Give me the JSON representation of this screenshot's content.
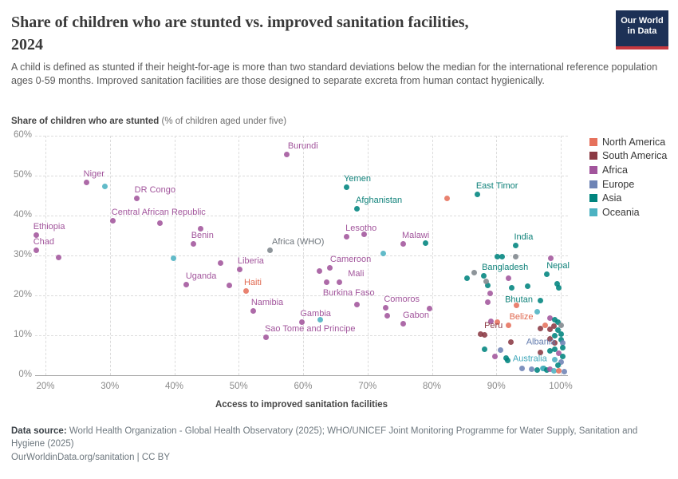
{
  "header": {
    "title_line1": "Share of children who are stunted vs. improved sanitation facilities,",
    "title_line2": "2024",
    "subtitle": "A child is defined as stunted if their height-for-age is more than two standard deviations below the median for the international reference population ages 0-59 months. Improved sanitation facilities are those designed to separate excreta from human contact hygienically.",
    "logo_line1": "Our World",
    "logo_line2": "in Data"
  },
  "chart_data": {
    "type": "scatter",
    "title": "Share of children who are stunted vs. improved sanitation facilities, 2024",
    "xlabel": "Access to improved sanitation facilities",
    "ylabel_bold": "Share of children who are stunted",
    "ylabel_note": " (% of children aged under five)",
    "x_ticks": [
      20,
      30,
      40,
      50,
      60,
      70,
      80,
      90,
      100
    ],
    "y_ticks": [
      0,
      10,
      20,
      30,
      40,
      50,
      60
    ],
    "xlim": [
      18,
      101
    ],
    "ylim": [
      0,
      60
    ],
    "grid": "dashed",
    "legend_position": "right-top",
    "legend": [
      {
        "key": "na",
        "label": "North America",
        "color": "#e6715c"
      },
      {
        "key": "sa",
        "label": "South America",
        "color": "#8b3a44"
      },
      {
        "key": "af",
        "label": "Africa",
        "color": "#a2559c"
      },
      {
        "key": "eu",
        "label": "Europe",
        "color": "#6d83b5"
      },
      {
        "key": "as",
        "label": "Asia",
        "color": "#00847e"
      },
      {
        "key": "oc",
        "label": "Oceania",
        "color": "#4cb2c2"
      }
    ],
    "groups": {
      "na": {
        "color": "#e6715c",
        "label_color": "#e0684f"
      },
      "sa": {
        "color": "#8b3a44",
        "label_color": "#8b3a44"
      },
      "af": {
        "color": "#a2559c",
        "label_color": "#a2559c"
      },
      "eu": {
        "color": "#6d83b5",
        "label_color": "#6079ad"
      },
      "as": {
        "color": "#00847e",
        "label_color": "#0e8179"
      },
      "oc": {
        "color": "#4cb2c2",
        "label_color": "#3fa7ba"
      },
      "gr": {
        "color": "#7e868c",
        "label_color": "#6e757b"
      }
    },
    "points": [
      [
        57.5,
        55.4,
        "af",
        "Burundi",
        "above",
        4,
        0
      ],
      [
        26.4,
        48.4,
        "af",
        "Niger",
        "above",
        -1,
        0
      ],
      [
        29.2,
        47.4,
        "oc"
      ],
      [
        34.2,
        44.4,
        "af",
        "DR Congo",
        "above",
        0,
        0
      ],
      [
        30.5,
        38.8,
        "af",
        "Central African Republic",
        "above",
        1,
        0
      ],
      [
        37.8,
        38.2,
        "af"
      ],
      [
        44.1,
        36.8,
        "af"
      ],
      [
        18.6,
        35.2,
        "af",
        "Ethiopia",
        "above",
        -1,
        0
      ],
      [
        18.6,
        31.4,
        "af",
        "Chad",
        "above",
        -1,
        0
      ],
      [
        22.1,
        29.6,
        "af"
      ],
      [
        43.0,
        33.0,
        "af",
        "Benin",
        "above",
        0,
        0
      ],
      [
        47.2,
        28.2,
        "af"
      ],
      [
        41.9,
        22.8,
        "af",
        "Uganda",
        "above",
        2,
        0
      ],
      [
        48.5,
        22.6,
        "af"
      ],
      [
        50.2,
        26.6,
        "af",
        "Liberia",
        "above",
        0,
        0
      ],
      [
        51.2,
        21.2,
        "na",
        "Haiti",
        "above",
        0,
        0
      ],
      [
        52.3,
        16.2,
        "af",
        "Namibia",
        "above",
        0,
        0
      ],
      [
        54.3,
        9.6,
        "af",
        "Sao Tome and Principe",
        "above",
        1,
        0
      ],
      [
        59.8,
        13.4,
        "af",
        "Gambia",
        "above",
        1,
        0
      ],
      [
        62.7,
        14.0,
        "oc"
      ],
      [
        54.8,
        31.4,
        "gr",
        "Africa (WHO)",
        "above",
        6,
        0
      ],
      [
        39.9,
        29.4,
        "oc"
      ],
      [
        62.5,
        26.2,
        "af"
      ],
      [
        64.2,
        27.0,
        "af",
        "Cameroon",
        "above",
        3,
        0
      ],
      [
        63.6,
        23.4,
        "af"
      ],
      [
        65.6,
        23.4,
        "af",
        "Mali",
        "above",
        14,
        0
      ],
      [
        68.4,
        17.8,
        "af",
        "Burkina Faso",
        "above",
        -40,
        -4
      ],
      [
        66.7,
        34.8,
        "af",
        "Lesotho",
        "above",
        2,
        0
      ],
      [
        69.5,
        35.4,
        "af"
      ],
      [
        72.8,
        17.0,
        "af",
        "Comoros",
        "above",
        1,
        0
      ],
      [
        73.1,
        15.0,
        "af"
      ],
      [
        75.6,
        13.0,
        "af",
        "Gabon",
        "above",
        2,
        0
      ],
      [
        75.6,
        33.0,
        "af",
        "Malawi",
        "above",
        1,
        0
      ],
      [
        79.0,
        33.2,
        "as"
      ],
      [
        72.4,
        30.6,
        "oc"
      ],
      [
        79.6,
        16.8,
        "af"
      ],
      [
        66.7,
        47.2,
        "as",
        "Yemen",
        "above",
        0,
        0
      ],
      [
        68.3,
        41.8,
        "as",
        "Afghanistan",
        "above",
        2,
        0
      ],
      [
        87.1,
        45.4,
        "as",
        "East Timor",
        "above",
        1,
        0
      ],
      [
        82.4,
        44.3,
        "na"
      ],
      [
        93.0,
        32.6,
        "as",
        "India",
        "above",
        1,
        0
      ],
      [
        90.1,
        29.8,
        "as"
      ],
      [
        90.9,
        29.8,
        "as"
      ],
      [
        93.0,
        29.8,
        "gr"
      ],
      [
        98.4,
        29.4,
        "af"
      ],
      [
        86.6,
        25.8,
        "gr"
      ],
      [
        85.4,
        24.4,
        "as"
      ],
      [
        88.0,
        25.0,
        "as",
        "Bangladesh",
        "above",
        1,
        0
      ],
      [
        97.8,
        25.4,
        "as",
        "Nepal",
        "above",
        3,
        0
      ],
      [
        99.5,
        23.0,
        "as"
      ],
      [
        99.7,
        22.0,
        "as"
      ],
      [
        91.9,
        24.4,
        "af"
      ],
      [
        92.4,
        22.0,
        "as"
      ],
      [
        94.9,
        22.4,
        "as"
      ],
      [
        88.7,
        22.6,
        "as"
      ],
      [
        88.4,
        23.6,
        "gr"
      ],
      [
        89.1,
        20.6,
        "af"
      ],
      [
        88.7,
        18.4,
        "af"
      ],
      [
        96.9,
        18.8,
        "as",
        "Bhutan",
        "left",
        -3,
        0
      ],
      [
        93.1,
        17.6,
        "na"
      ],
      [
        96.3,
        16.0,
        "oc"
      ],
      [
        89.2,
        13.6,
        "af"
      ],
      [
        90.1,
        13.4,
        "na"
      ],
      [
        91.9,
        12.6,
        "na",
        "Belize",
        "above",
        4,
        0
      ],
      [
        87.5,
        10.4,
        "sa",
        "Peru",
        "above",
        8,
        0
      ],
      [
        88.2,
        10.2,
        "sa"
      ],
      [
        92.3,
        8.4,
        "sa"
      ],
      [
        96.8,
        5.8,
        "sa"
      ],
      [
        96.9,
        11.8,
        "sa"
      ],
      [
        97.6,
        12.5,
        "na"
      ],
      [
        88.2,
        6.6,
        "as"
      ],
      [
        90.7,
        6.4,
        "eu"
      ],
      [
        89.8,
        4.8,
        "af"
      ],
      [
        91.5,
        4.4,
        "as"
      ],
      [
        91.8,
        3.8,
        "as"
      ],
      [
        98.3,
        14.4,
        "af"
      ],
      [
        99.1,
        14.0,
        "as"
      ],
      [
        99.6,
        13.4,
        "as"
      ],
      [
        100.0,
        12.6,
        "gr"
      ],
      [
        99.0,
        12.4,
        "sa"
      ],
      [
        98.3,
        11.6,
        "sa"
      ],
      [
        99.6,
        11.4,
        "as"
      ],
      [
        100.0,
        10.4,
        "as"
      ],
      [
        99.1,
        10.0,
        "as"
      ],
      [
        98.3,
        9.2,
        "sa"
      ],
      [
        100.0,
        9.0,
        "as"
      ],
      [
        100.3,
        8.2,
        "eu",
        "Albania",
        "left",
        -2,
        0
      ],
      [
        99.1,
        8.2,
        "sa"
      ],
      [
        100.3,
        7.0,
        "as"
      ],
      [
        99.1,
        6.6,
        "as"
      ],
      [
        98.3,
        6.2,
        "as"
      ],
      [
        99.7,
        5.6,
        "af"
      ],
      [
        100.3,
        4.8,
        "as"
      ],
      [
        99.1,
        4.0,
        "oc",
        "Australia",
        "left",
        -3,
        0
      ],
      [
        100.0,
        3.4,
        "eu"
      ],
      [
        99.6,
        2.6,
        "as"
      ],
      [
        97.3,
        1.8,
        "as"
      ],
      [
        94.0,
        1.8,
        "eu"
      ],
      [
        95.5,
        1.6,
        "eu"
      ],
      [
        96.4,
        1.4,
        "as"
      ],
      [
        97.2,
        1.7,
        "oc"
      ],
      [
        97.8,
        1.3,
        "as"
      ],
      [
        98.3,
        1.5,
        "af"
      ],
      [
        99.0,
        1.2,
        "oc"
      ],
      [
        99.7,
        1.2,
        "na"
      ],
      [
        100.5,
        1.0,
        "eu"
      ]
    ]
  },
  "footer": {
    "datasource_label": "Data source:",
    "datasource_text": " World Health Organization - Global Health Observatory (2025); WHO/UNICEF Joint Monitoring Programme for Water Supply, Sanitation and Hygiene (2025)",
    "credit": "OurWorldinData.org/sanitation | CC BY"
  }
}
